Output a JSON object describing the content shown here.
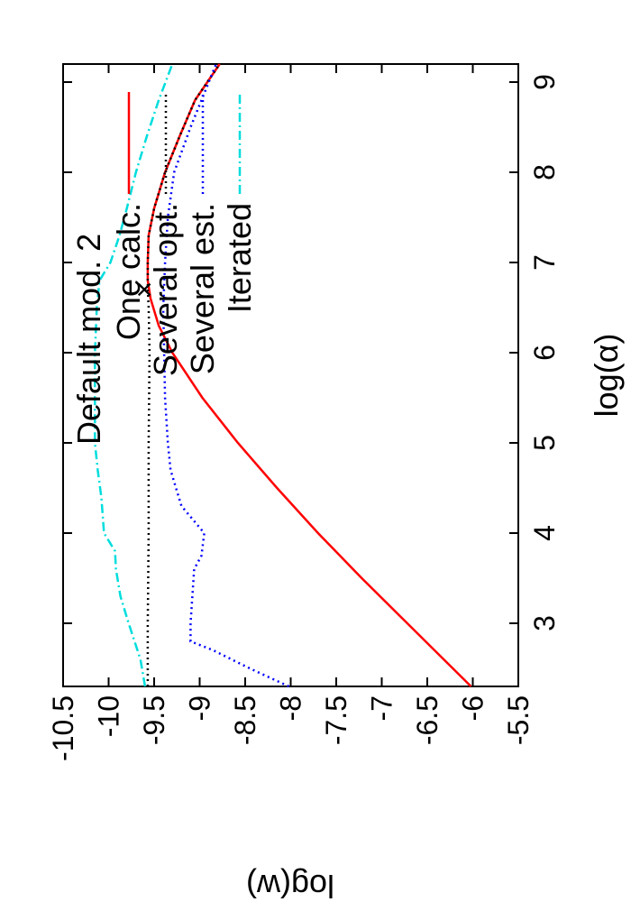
{
  "chart_data": {
    "type": "line",
    "orientation": "rotated 90 degrees counter-clockwise",
    "title": "Default mod.  2",
    "xlabel": "log(α)",
    "ylabel": "log(w)",
    "xlim": [
      2.3,
      9.2
    ],
    "ylim": [
      -10.5,
      -5.5
    ],
    "xticks": [
      3,
      4,
      5,
      6,
      7,
      8,
      9
    ],
    "yticks": [
      -5.5,
      -6,
      -6.5,
      -7,
      -7.5,
      -8,
      -8.5,
      -9,
      -9.5,
      -10,
      -10.5
    ],
    "legend_position": "top-right",
    "series": [
      {
        "name": "One calc.",
        "color": "#ff0000",
        "style": "solid",
        "x": [
          2.3,
          3,
          3.5,
          4,
          4.5,
          5,
          5.5,
          6,
          6.3,
          6.6,
          6.8,
          7,
          7.3,
          7.6,
          8,
          8.4,
          8.8,
          9.2
        ],
        "y": [
          -6.02,
          -6.72,
          -7.22,
          -7.7,
          -8.15,
          -8.58,
          -8.97,
          -9.3,
          -9.45,
          -9.54,
          -9.57,
          -9.57,
          -9.56,
          -9.5,
          -9.38,
          -9.22,
          -9.05,
          -8.78
        ]
      },
      {
        "name": "Several opt.",
        "color": "#000000",
        "style": "dotted",
        "x": [
          2.3,
          3,
          4,
          5,
          6,
          6.5,
          6.7,
          7,
          7.3,
          7.6,
          8,
          8.4,
          8.8,
          9.2
        ],
        "y": [
          -9.57,
          -9.57,
          -9.56,
          -9.56,
          -9.55,
          -9.56,
          -9.57,
          -9.57,
          -9.56,
          -9.5,
          -9.38,
          -9.22,
          -9.05,
          -8.78
        ]
      },
      {
        "name": "Several est.",
        "color": "#0000ff",
        "style": "dotted",
        "x": [
          2.3,
          2.5,
          2.6,
          2.7,
          2.8,
          3,
          3.3,
          3.6,
          3.75,
          4,
          4.3,
          4.7,
          5,
          5.5,
          6,
          6.5,
          7,
          7.5,
          8,
          8.5,
          9.2
        ],
        "y": [
          -8.02,
          -8.45,
          -8.65,
          -8.85,
          -9.1,
          -9.1,
          -9.08,
          -9.06,
          -8.98,
          -8.95,
          -9.2,
          -9.32,
          -9.35,
          -9.38,
          -9.39,
          -9.4,
          -9.38,
          -9.35,
          -9.28,
          -9.1,
          -8.82
        ]
      },
      {
        "name": "Iterated",
        "color": "#00dddd",
        "style": "dash-dot",
        "x": [
          2.3,
          2.6,
          3,
          3.3,
          3.6,
          3.8,
          4,
          4.4,
          4.7,
          5,
          5.5,
          6,
          6.5,
          6.8,
          7,
          7.3,
          7.6,
          8,
          8.4,
          8.8,
          9.2
        ],
        "y": [
          -9.6,
          -9.65,
          -9.78,
          -9.87,
          -9.92,
          -9.93,
          -10.05,
          -10.08,
          -10.12,
          -10.15,
          -10.15,
          -10.15,
          -10.13,
          -10.1,
          -9.98,
          -9.88,
          -9.8,
          -9.7,
          -9.58,
          -9.45,
          -9.3
        ]
      }
    ],
    "markers": [
      {
        "label": "×",
        "x": 6.7,
        "y": -9.61
      }
    ]
  }
}
